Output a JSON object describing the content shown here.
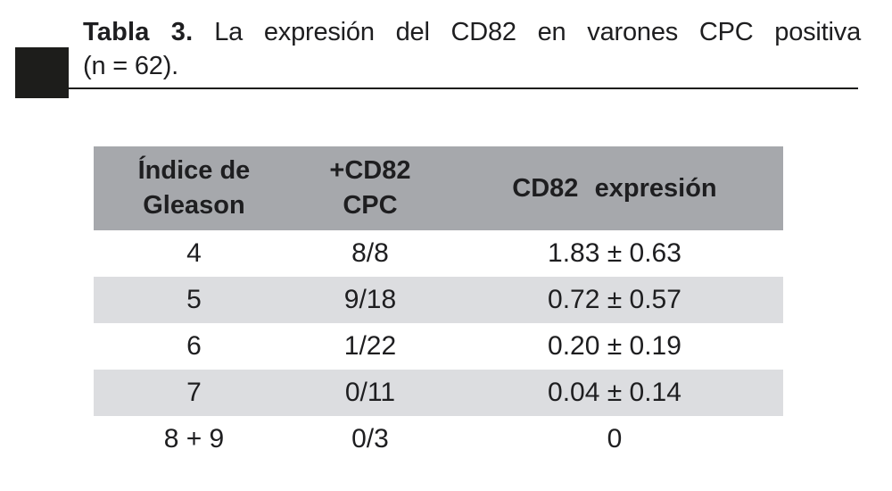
{
  "caption": {
    "bold": "Tabla 3.",
    "rest": "La expresión del CD82 en varones CPC positiva",
    "line2": "(n = 62)."
  },
  "table": {
    "headers": [
      "Índice de\nGleason",
      "+CD82\nCPC",
      "CD82 expresión"
    ],
    "rows": [
      [
        "4",
        "8/8",
        "1.83 ± 0.63"
      ],
      [
        "5",
        "9/18",
        "0.72 ± 0.57"
      ],
      [
        "6",
        "1/22",
        "0.20 ± 0.19"
      ],
      [
        "7",
        "0/11",
        "0.04 ± 0.14"
      ],
      [
        "8 + 9",
        "0/3",
        "0"
      ]
    ]
  },
  "colors": {
    "ink": "#1e1e20",
    "header_bg": "#a6a8ac",
    "row_alt_bg": "#dcdde0",
    "marker": "#1d1d1b",
    "page_bg": "#ffffff"
  }
}
